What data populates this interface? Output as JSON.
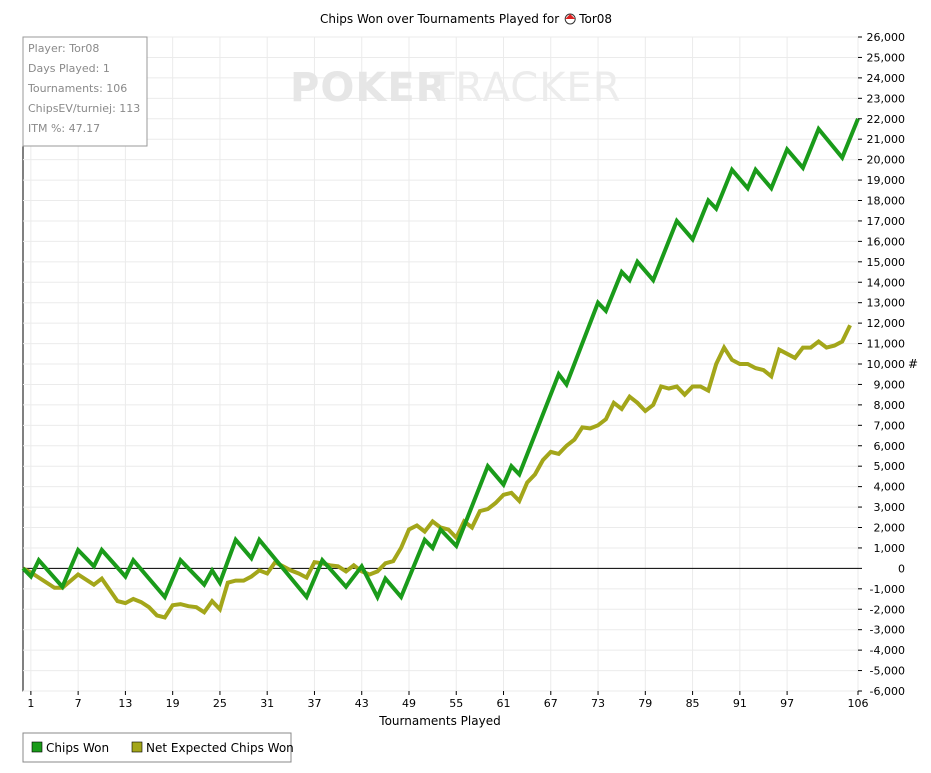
{
  "chart_data": {
    "type": "line",
    "title": "Chips Won over Tournaments Played for",
    "player_name": "Tor08",
    "xlabel": "Tournaments Played",
    "ylabel": "#",
    "xlim": [
      0,
      106
    ],
    "ylim": [
      -6000,
      26000
    ],
    "x_ticks": [
      1,
      7,
      13,
      19,
      25,
      31,
      37,
      43,
      49,
      55,
      61,
      67,
      73,
      79,
      85,
      91,
      97,
      106
    ],
    "y_ticks": [
      26000,
      25000,
      24000,
      23000,
      22000,
      21000,
      20000,
      19000,
      18000,
      17000,
      16000,
      15000,
      14000,
      13000,
      12000,
      11000,
      10000,
      9000,
      8000,
      7000,
      6000,
      5000,
      4000,
      3000,
      2000,
      1000,
      0,
      -1000,
      -2000,
      -3000,
      -4000,
      -5000,
      -6000
    ],
    "y_tick_labels": [
      "26,000",
      "25,000",
      "24,000",
      "23,000",
      "22,000",
      "21,000",
      "20,000",
      "19,000",
      "18,000",
      "17,000",
      "16,000",
      "15,000",
      "14,000",
      "13,000",
      "12,000",
      "11,000",
      "10,000",
      "9,000",
      "8,000",
      "7,000",
      "6,000",
      "5,000",
      "4,000",
      "3,000",
      "2,000",
      "1,000",
      "0",
      "-1,000",
      "-2,000",
      "-3,000",
      "-4,000",
      "-5,000",
      "-6,000"
    ],
    "grid": true,
    "legend_position": "bottom-left",
    "series": [
      {
        "name": "Chips Won",
        "color": "#1a9b1a",
        "points": [
          [
            0,
            0
          ],
          [
            1,
            -400
          ],
          [
            2,
            400
          ],
          [
            5,
            -900
          ],
          [
            7,
            900
          ],
          [
            9,
            100
          ],
          [
            10,
            900
          ],
          [
            13,
            -400
          ],
          [
            14,
            400
          ],
          [
            18,
            -1400
          ],
          [
            20,
            400
          ],
          [
            23,
            -800
          ],
          [
            24,
            -100
          ],
          [
            25,
            -700
          ],
          [
            27,
            1400
          ],
          [
            29,
            500
          ],
          [
            30,
            1400
          ],
          [
            36,
            -1400
          ],
          [
            38,
            400
          ],
          [
            41,
            -900
          ],
          [
            43,
            100
          ],
          [
            45,
            -1400
          ],
          [
            46,
            -500
          ],
          [
            48,
            -1400
          ],
          [
            51,
            1400
          ],
          [
            52,
            1000
          ],
          [
            53,
            1900
          ],
          [
            55,
            1100
          ],
          [
            59,
            5000
          ],
          [
            61,
            4100
          ],
          [
            62,
            5000
          ],
          [
            63,
            4600
          ],
          [
            68,
            9500
          ],
          [
            69,
            9000
          ],
          [
            73,
            13000
          ],
          [
            74,
            12600
          ],
          [
            76,
            14500
          ],
          [
            77,
            14100
          ],
          [
            78,
            15000
          ],
          [
            80,
            14100
          ],
          [
            83,
            17000
          ],
          [
            85,
            16100
          ],
          [
            87,
            18000
          ],
          [
            88,
            17600
          ],
          [
            90,
            19500
          ],
          [
            92,
            18600
          ],
          [
            93,
            19500
          ],
          [
            95,
            18600
          ],
          [
            97,
            20500
          ],
          [
            99,
            19600
          ],
          [
            101,
            21500
          ],
          [
            104,
            20100
          ],
          [
            106,
            22000
          ]
        ]
      },
      {
        "name": "Net Expected Chips Won",
        "color": "#a3a61a",
        "points": [
          [
            0,
            0
          ],
          [
            1,
            -200
          ],
          [
            4,
            -950
          ],
          [
            5,
            -950
          ],
          [
            7,
            -300
          ],
          [
            9,
            -800
          ],
          [
            10,
            -500
          ],
          [
            12,
            -1600
          ],
          [
            13,
            -1700
          ],
          [
            14,
            -1500
          ],
          [
            15,
            -1650
          ],
          [
            16,
            -1900
          ],
          [
            17,
            -2300
          ],
          [
            18,
            -2400
          ],
          [
            19,
            -1800
          ],
          [
            20,
            -1750
          ],
          [
            21,
            -1850
          ],
          [
            22,
            -1900
          ],
          [
            23,
            -2150
          ],
          [
            24,
            -1600
          ],
          [
            25,
            -2000
          ],
          [
            26,
            -700
          ],
          [
            27,
            -600
          ],
          [
            28,
            -600
          ],
          [
            29,
            -400
          ],
          [
            30,
            -100
          ],
          [
            31,
            -250
          ],
          [
            32,
            300
          ],
          [
            33,
            100
          ],
          [
            34,
            -100
          ],
          [
            35,
            -250
          ],
          [
            36,
            -450
          ],
          [
            37,
            300
          ],
          [
            38,
            250
          ],
          [
            39,
            150
          ],
          [
            40,
            100
          ],
          [
            41,
            -150
          ],
          [
            42,
            150
          ],
          [
            43,
            -150
          ],
          [
            44,
            -300
          ],
          [
            45,
            -150
          ],
          [
            46,
            250
          ],
          [
            47,
            350
          ],
          [
            48,
            1000
          ],
          [
            49,
            1900
          ],
          [
            50,
            2100
          ],
          [
            51,
            1800
          ],
          [
            52,
            2300
          ],
          [
            53,
            2000
          ],
          [
            54,
            1900
          ],
          [
            55,
            1500
          ],
          [
            56,
            2300
          ],
          [
            57,
            2000
          ],
          [
            58,
            2800
          ],
          [
            59,
            2900
          ],
          [
            60,
            3200
          ],
          [
            61,
            3600
          ],
          [
            62,
            3700
          ],
          [
            63,
            3300
          ],
          [
            64,
            4200
          ],
          [
            65,
            4600
          ],
          [
            66,
            5300
          ],
          [
            67,
            5700
          ],
          [
            68,
            5600
          ],
          [
            69,
            6000
          ],
          [
            70,
            6300
          ],
          [
            71,
            6900
          ],
          [
            72,
            6850
          ],
          [
            73,
            7000
          ],
          [
            74,
            7300
          ],
          [
            75,
            8100
          ],
          [
            76,
            7800
          ],
          [
            77,
            8400
          ],
          [
            78,
            8100
          ],
          [
            79,
            7700
          ],
          [
            80,
            8000
          ],
          [
            81,
            8900
          ],
          [
            82,
            8800
          ],
          [
            83,
            8900
          ],
          [
            84,
            8500
          ],
          [
            85,
            8900
          ],
          [
            86,
            8900
          ],
          [
            87,
            8700
          ],
          [
            88,
            10000
          ],
          [
            89,
            10800
          ],
          [
            90,
            10200
          ],
          [
            91,
            10000
          ],
          [
            92,
            10000
          ],
          [
            93,
            9800
          ],
          [
            94,
            9700
          ],
          [
            95,
            9400
          ],
          [
            96,
            10700
          ],
          [
            97,
            10500
          ],
          [
            98,
            10300
          ],
          [
            99,
            10800
          ],
          [
            100,
            10800
          ],
          [
            101,
            11100
          ],
          [
            102,
            10800
          ],
          [
            103,
            10900
          ],
          [
            104,
            11100
          ],
          [
            105,
            11900
          ]
        ]
      }
    ]
  },
  "info_box": {
    "player": "Player: Tor08",
    "days_played": "Days Played: 1",
    "tournaments": "Tournaments: 106",
    "chips_ev": "ChipsEV/turniej: 113",
    "itm": "ITM %: 47.17"
  },
  "watermark": {
    "part1": "POKER",
    "part2": "TRACKER"
  },
  "colors": {
    "chips_won": "#1a9b1a",
    "net_expected": "#a3a61a",
    "grid": "#ebebeb",
    "zero_line": "#000000"
  }
}
